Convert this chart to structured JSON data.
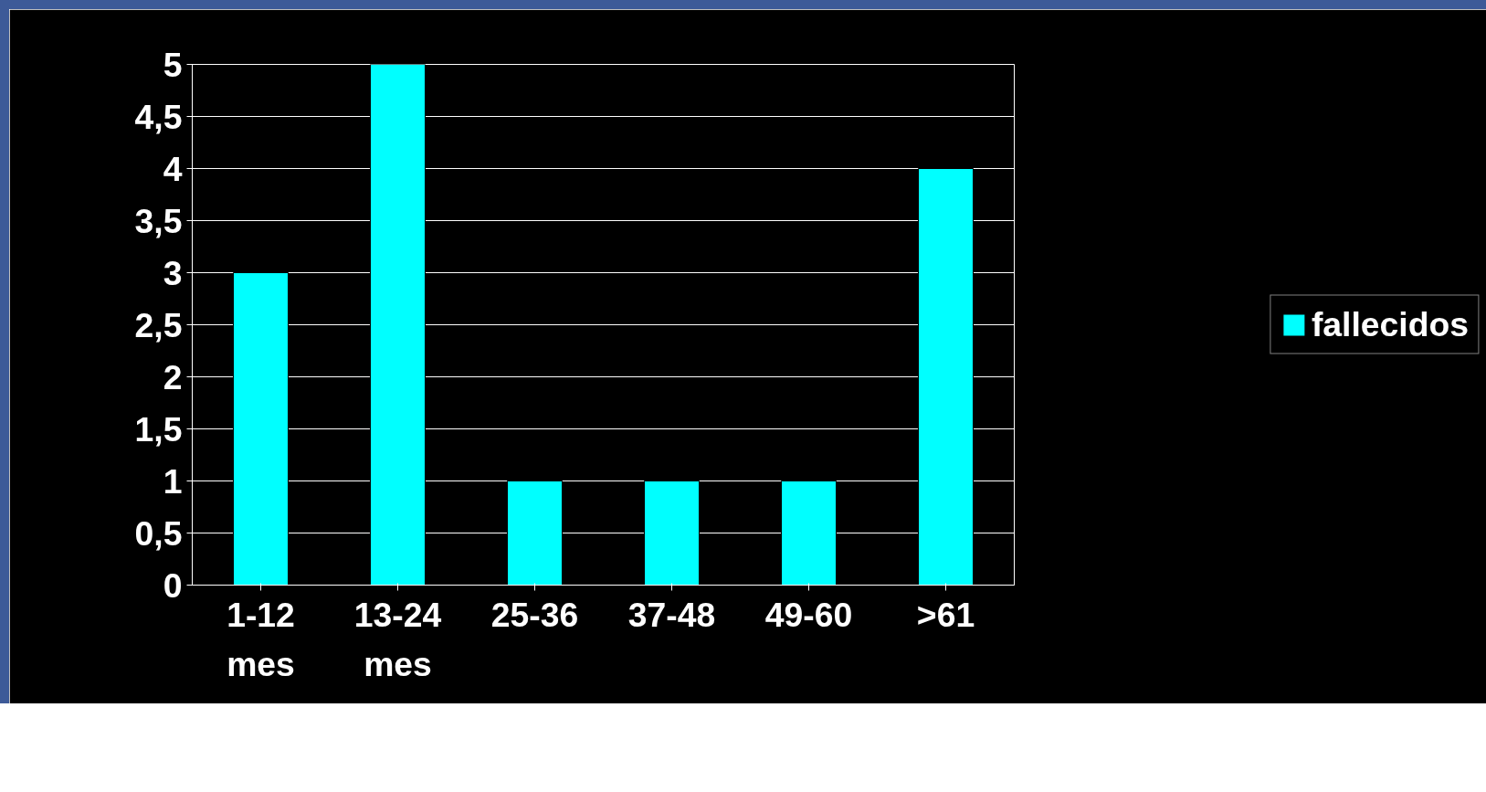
{
  "chart_data": {
    "type": "bar",
    "categories": [
      "1-12 mes",
      "13-24 mes",
      "25-36",
      "37-48",
      "49-60",
      ">61"
    ],
    "series": [
      {
        "name": "fallecidos",
        "color": "#00ffff",
        "values": [
          3,
          5,
          1,
          1,
          1,
          4
        ]
      }
    ],
    "ylim": [
      0,
      5
    ],
    "yticks": [
      0,
      {
        "value": 0.5,
        "label": "0,5"
      },
      1,
      {
        "value": 1.5,
        "label": "1,5"
      },
      2,
      {
        "value": 2.5,
        "label": "2,5"
      },
      3,
      {
        "value": 3.5,
        "label": "3,5"
      },
      4,
      {
        "value": 4.5,
        "label": "4,5"
      },
      5
    ],
    "grid": "y",
    "legend": "right"
  }
}
